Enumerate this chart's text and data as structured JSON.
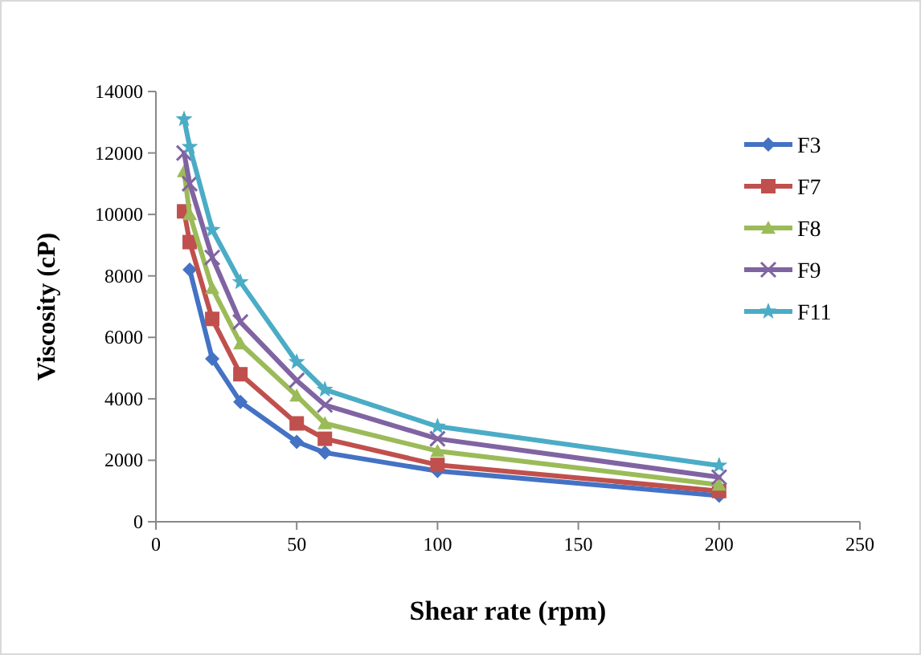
{
  "chart_data": {
    "type": "line",
    "xlabel": "Shear rate (rpm)",
    "ylabel": "Viscosity (cP)",
    "x": [
      10,
      12,
      20,
      30,
      50,
      60,
      100,
      200
    ],
    "xlim": [
      0,
      250
    ],
    "xticks": [
      0,
      50,
      100,
      150,
      200,
      250
    ],
    "ylim": [
      0,
      14000
    ],
    "yticks": [
      0,
      2000,
      4000,
      6000,
      8000,
      10000,
      12000,
      14000
    ],
    "grid": false,
    "legend": "top right",
    "series": [
      {
        "name": "F3",
        "color": "#4472c4",
        "marker": "diamond",
        "values": [
          null,
          8200,
          5300,
          3900,
          2600,
          2250,
          1650,
          850
        ]
      },
      {
        "name": "F7",
        "color": "#c0504d",
        "marker": "square",
        "values": [
          10100,
          9100,
          6600,
          4800,
          3200,
          2700,
          1850,
          1000
        ]
      },
      {
        "name": "F8",
        "color": "#9bbb59",
        "marker": "triangle",
        "values": [
          11400,
          10000,
          7600,
          5800,
          4100,
          3200,
          2300,
          1200
        ]
      },
      {
        "name": "F9",
        "color": "#8064a2",
        "marker": "cross",
        "values": [
          12000,
          11000,
          8600,
          6500,
          4600,
          3800,
          2700,
          1450
        ]
      },
      {
        "name": "F11",
        "color": "#4bacc6",
        "marker": "star",
        "values": [
          13100,
          12200,
          9500,
          7800,
          5200,
          4300,
          3100,
          1830
        ]
      }
    ]
  }
}
